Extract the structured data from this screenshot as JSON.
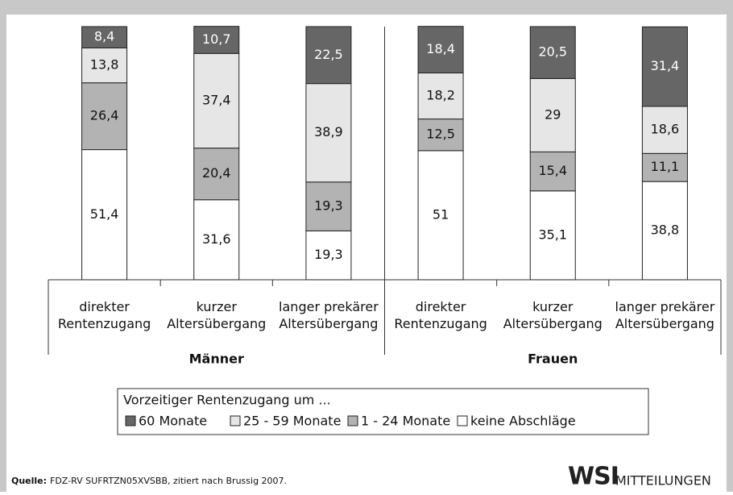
{
  "chart_data": {
    "type": "stacked-bar",
    "categories": [
      "direkter\nRentenzugang",
      "kurzer\nAltersübergang",
      "langer prekärer\nAltersübergang",
      "direkter\nRentenzugang",
      "kurzer\nAltersübergang",
      "langer prekärer\nAltersübergang"
    ],
    "groups": [
      "Männer",
      "Frauen"
    ],
    "ylim": [
      0,
      100
    ],
    "legend_title": "Vorzeitiger Rentenzugang um ...",
    "series": [
      {
        "name": "keine Abschläge",
        "color": "#ffffff",
        "values": [
          51.4,
          31.6,
          19.3,
          51,
          35.1,
          38.8
        ],
        "value_labels": [
          "51,4",
          "31,6",
          "19,3",
          "51",
          "35,1",
          "38,8"
        ]
      },
      {
        "name": "1 - 24 Monate",
        "color": "#b3b3b3",
        "values": [
          26.4,
          20.4,
          19.3,
          12.5,
          15.4,
          11.1
        ],
        "value_labels": [
          "26,4",
          "20,4",
          "19,3",
          "12,5",
          "15,4",
          "11,1"
        ]
      },
      {
        "name": "25 - 59 Monate",
        "color": "#e6e6e6",
        "values": [
          13.8,
          37.4,
          38.9,
          18.2,
          29,
          18.6
        ],
        "value_labels": [
          "13,8",
          "37,4",
          "38,9",
          "18,2",
          "29",
          "18,6"
        ]
      },
      {
        "name": "60 Monate",
        "color": "#666666",
        "values": [
          8.4,
          10.7,
          22.5,
          18.4,
          20.5,
          31.4
        ],
        "value_labels": [
          "8,4",
          "10,7",
          "22,5",
          "18,4",
          "20,5",
          "31,4"
        ]
      }
    ],
    "source_label": "Quelle:",
    "source": "FDZ-RV SUFRTZN05XVSBB, zitiert nach Brussig 2007.",
    "logo_main": "WSI",
    "logo_sub": "MITTEILUNGEN"
  }
}
